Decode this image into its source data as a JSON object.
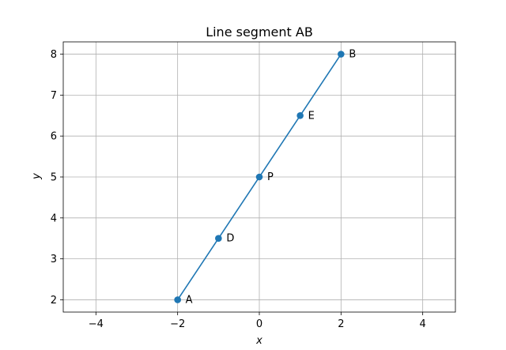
{
  "chart_data": {
    "type": "line",
    "title": "Line segment AB",
    "xlabel": "x",
    "ylabel": "y",
    "xlim": [
      -4.8,
      4.8
    ],
    "ylim": [
      1.7,
      8.3
    ],
    "xticks": [
      -4,
      -2,
      0,
      2,
      4
    ],
    "yticks": [
      2,
      3,
      4,
      5,
      6,
      7,
      8
    ],
    "xtick_labels": [
      "−4",
      "−2",
      "0",
      "2",
      "4"
    ],
    "ytick_labels": [
      "2",
      "3",
      "4",
      "5",
      "6",
      "7",
      "8"
    ],
    "grid": true,
    "series": [
      {
        "x": [
          -2,
          2
        ],
        "y": [
          2,
          8
        ],
        "color": "#1f77b4"
      }
    ],
    "points": [
      {
        "label": "A",
        "x": -2,
        "y": 2
      },
      {
        "label": "D",
        "x": -1,
        "y": 3.5
      },
      {
        "label": "P",
        "x": 0,
        "y": 5
      },
      {
        "label": "E",
        "x": 1,
        "y": 6.5
      },
      {
        "label": "B",
        "x": 2,
        "y": 8
      }
    ],
    "colors": {
      "line": "#1f77b4",
      "marker": "#1f77b4",
      "grid": "#b0b0b0",
      "axes": "#000000"
    }
  }
}
